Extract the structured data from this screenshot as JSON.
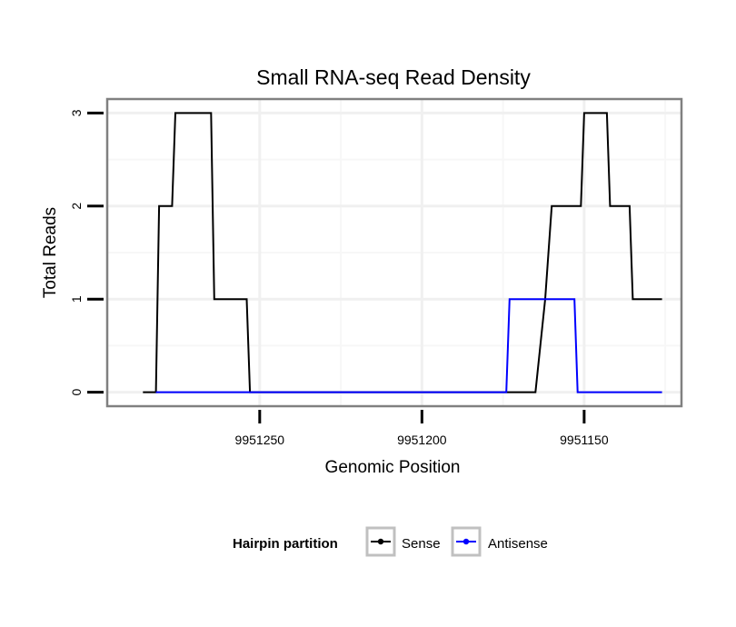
{
  "chart_data": {
    "type": "line",
    "title": "Small RNA-seq Read Density",
    "xlabel": "Genomic Position",
    "ylabel": "Total Reads",
    "xlim": [
      9951297,
      9951120
    ],
    "ylim": [
      -0.15,
      3.15
    ],
    "x_reversed": true,
    "x_ticks": [
      9951250,
      9951200,
      9951150
    ],
    "x_tick_labels": [
      "9951250",
      "9951200",
      "9951150"
    ],
    "y_ticks": [
      0,
      1,
      2,
      3
    ],
    "y_tick_labels": [
      "0",
      "1",
      "2",
      "3"
    ],
    "grid": true,
    "legend": {
      "title": "Hairpin partition",
      "placement": "bottom",
      "entries": [
        "Sense",
        "Antisense"
      ]
    },
    "series": [
      {
        "name": "Sense",
        "color": "#000000",
        "points": [
          [
            9951286,
            0
          ],
          [
            9951282,
            0
          ],
          [
            9951281,
            2
          ],
          [
            9951277,
            2
          ],
          [
            9951276,
            3
          ],
          [
            9951265,
            3
          ],
          [
            9951264,
            1
          ],
          [
            9951254,
            1
          ],
          [
            9951253,
            0
          ],
          [
            9951165,
            0
          ],
          [
            9951162,
            1
          ],
          [
            9951160,
            2
          ],
          [
            9951151,
            2
          ],
          [
            9951150,
            3
          ],
          [
            9951143,
            3
          ],
          [
            9951142,
            2
          ],
          [
            9951136,
            2
          ],
          [
            9951135,
            1
          ],
          [
            9951126,
            1
          ]
        ]
      },
      {
        "name": "Antisense",
        "color": "#0000ff",
        "points": [
          [
            9951282,
            0
          ],
          [
            9951174,
            0
          ],
          [
            9951173,
            1
          ],
          [
            9951153,
            1
          ],
          [
            9951152,
            0
          ],
          [
            9951126,
            0
          ]
        ]
      }
    ]
  }
}
